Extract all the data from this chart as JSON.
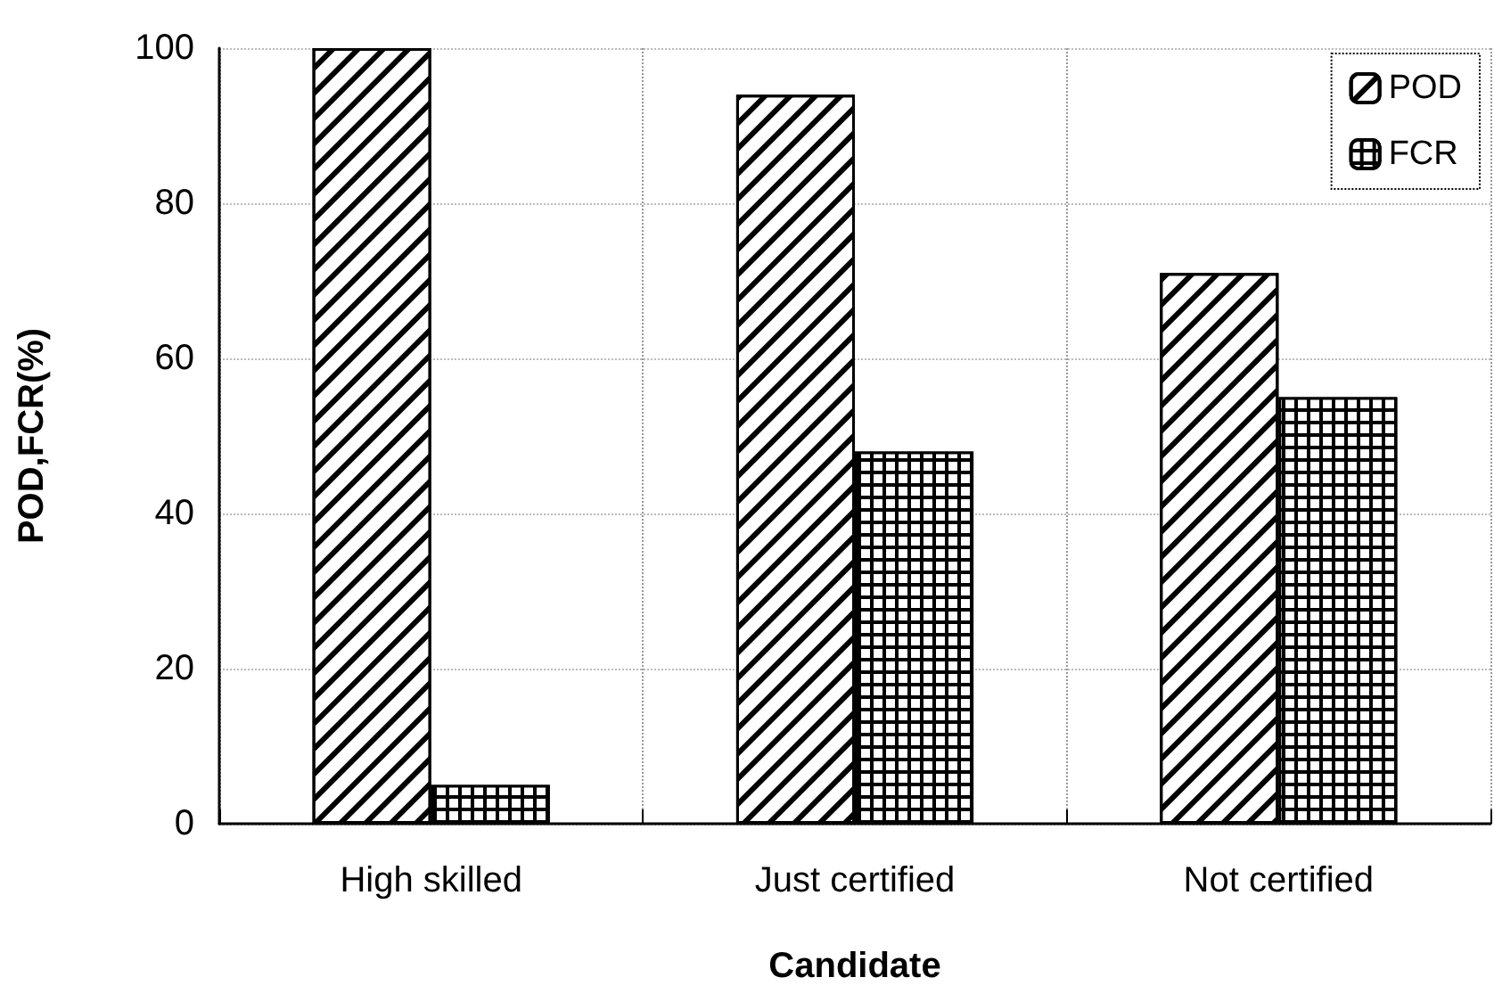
{
  "chart_data": {
    "type": "bar",
    "xlabel": "Candidate",
    "ylabel": "POD,FCR(%)",
    "categories": [
      "High skilled",
      "Just certified",
      "Not certified"
    ],
    "series": [
      {
        "name": "POD",
        "color": "#000000",
        "values": [
          100,
          94,
          71
        ]
      },
      {
        "name": "FCR",
        "color": "#000000",
        "values": [
          5,
          48,
          55
        ]
      }
    ],
    "ylim": [
      0,
      100
    ],
    "yticks": [
      0,
      20,
      40,
      60,
      80,
      100
    ],
    "grid": true,
    "legend": "top right"
  }
}
